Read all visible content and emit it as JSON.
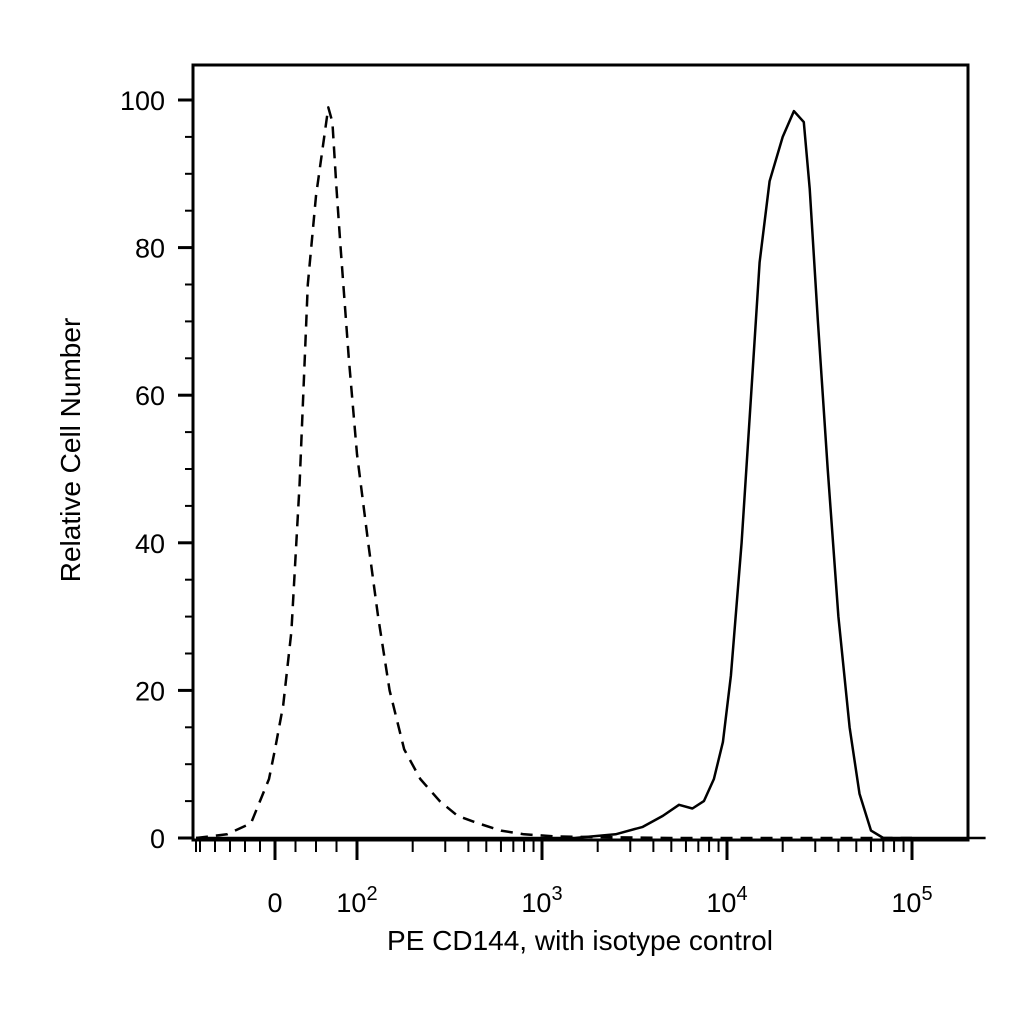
{
  "chart_data": {
    "type": "line",
    "title": "",
    "xlabel": "PE CD144, with isotype control",
    "ylabel": "Relative Cell Number",
    "x_scale": "biexponential (linear near 0, log above 10^2)",
    "xlim": [
      -200,
      250000
    ],
    "ylim": [
      0,
      105
    ],
    "grid": false,
    "legend": "none",
    "yticks": [
      {
        "value": 0,
        "label": "0"
      },
      {
        "value": 20,
        "label": "20"
      },
      {
        "value": 40,
        "label": "40"
      },
      {
        "value": 60,
        "label": "60"
      },
      {
        "value": 80,
        "label": "80"
      },
      {
        "value": 100,
        "label": "100"
      }
    ],
    "xticks": [
      {
        "value": 0,
        "label": "0",
        "sup": ""
      },
      {
        "value": 100,
        "label": "10",
        "sup": "2"
      },
      {
        "value": 1000,
        "label": "10",
        "sup": "3"
      },
      {
        "value": 10000,
        "label": "10",
        "sup": "4"
      },
      {
        "value": 100000,
        "label": "10",
        "sup": "5"
      }
    ],
    "series": [
      {
        "style": "dashed",
        "color": "#000000",
        "points": [
          [
            -150,
            0
          ],
          [
            -80,
            0.5
          ],
          [
            -40,
            2
          ],
          [
            -10,
            8
          ],
          [
            0,
            12
          ],
          [
            10,
            18
          ],
          [
            20,
            28
          ],
          [
            30,
            48
          ],
          [
            40,
            75
          ],
          [
            50,
            87
          ],
          [
            60,
            95
          ],
          [
            65,
            99
          ],
          [
            70,
            97
          ],
          [
            75,
            88
          ],
          [
            80,
            80
          ],
          [
            90,
            65
          ],
          [
            100,
            52
          ],
          [
            115,
            40
          ],
          [
            130,
            30
          ],
          [
            150,
            20
          ],
          [
            180,
            12
          ],
          [
            220,
            8
          ],
          [
            280,
            5
          ],
          [
            350,
            3
          ],
          [
            450,
            2
          ],
          [
            600,
            1
          ],
          [
            800,
            0.5
          ],
          [
            1200,
            0.2
          ],
          [
            5000,
            0
          ],
          [
            100000,
            0
          ]
        ]
      },
      {
        "style": "solid",
        "color": "#000000",
        "points": [
          [
            -150,
            0
          ],
          [
            1500,
            0
          ],
          [
            2500,
            0.5
          ],
          [
            3500,
            1.5
          ],
          [
            4500,
            3
          ],
          [
            5500,
            4.5
          ],
          [
            6500,
            4
          ],
          [
            7500,
            5
          ],
          [
            8500,
            8
          ],
          [
            9500,
            13
          ],
          [
            10500,
            22
          ],
          [
            12000,
            40
          ],
          [
            13500,
            60
          ],
          [
            15000,
            78
          ],
          [
            17000,
            89
          ],
          [
            20000,
            95
          ],
          [
            23000,
            98.5
          ],
          [
            26000,
            97
          ],
          [
            28000,
            88
          ],
          [
            31000,
            70
          ],
          [
            35000,
            50
          ],
          [
            40000,
            30
          ],
          [
            46000,
            15
          ],
          [
            52000,
            6
          ],
          [
            60000,
            1
          ],
          [
            70000,
            0
          ],
          [
            250000,
            0
          ]
        ]
      }
    ]
  }
}
